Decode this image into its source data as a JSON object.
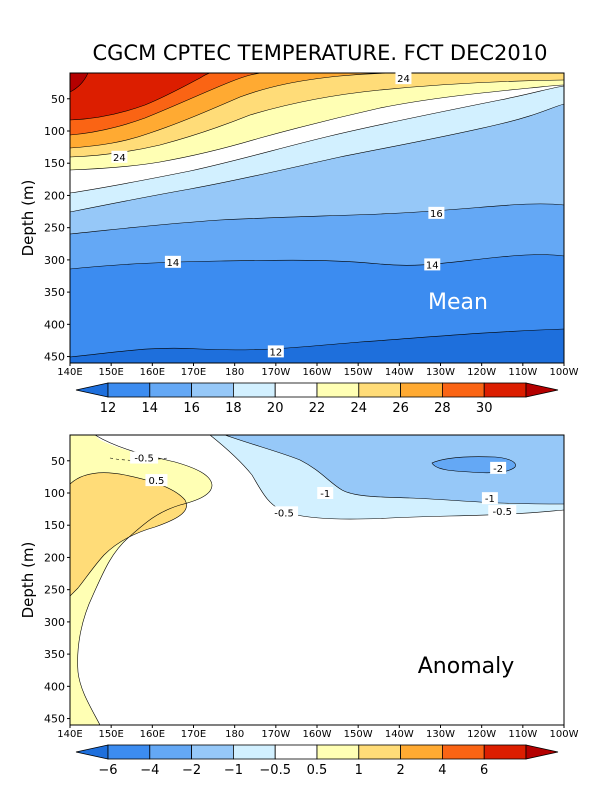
{
  "title": "CGCM CPTEC TEMPERATURE. FCT DEC2010",
  "chart_data": [
    {
      "type": "contour",
      "panel_label": "Mean",
      "title": "CGCM CPTEC TEMPERATURE. FCT DEC2010",
      "xlabel": "",
      "ylabel": "Depth (m)",
      "x_ticks": [
        "140E",
        "150E",
        "160E",
        "170E",
        "180",
        "170W",
        "160W",
        "150W",
        "140W",
        "130W",
        "120W",
        "110W",
        "100W"
      ],
      "y_ticks": [
        50,
        100,
        150,
        200,
        250,
        300,
        350,
        400,
        450
      ],
      "ylim": [
        460,
        10
      ],
      "contour_labels": [
        {
          "text": "24",
          "lon": 221,
          "depth": 18
        },
        {
          "text": "24",
          "lon": 152,
          "depth": 140
        },
        {
          "text": "16",
          "lon": 229,
          "depth": 227
        },
        {
          "text": "14",
          "lon": 165,
          "depth": 303
        },
        {
          "text": "14",
          "lon": 228,
          "depth": 307
        },
        {
          "text": "12",
          "lon": 190,
          "depth": 442
        }
      ],
      "colorbar": {
        "levels": [
          "12",
          "14",
          "16",
          "18",
          "20",
          "22",
          "24",
          "26",
          "28",
          "30"
        ],
        "colors": [
          "#1e6fdc",
          "#3c8cf0",
          "#64a8f5",
          "#96c8f8",
          "#d2f0ff",
          "#ffffff",
          "#ffffb4",
          "#ffdc78",
          "#ffaa32",
          "#fa6414",
          "#dc1e00",
          "#b40000"
        ]
      }
    },
    {
      "type": "contour",
      "panel_label": "Anomaly",
      "xlabel": "",
      "ylabel": "Depth (m)",
      "x_ticks": [
        "140E",
        "150E",
        "160E",
        "170E",
        "180",
        "170W",
        "160W",
        "150W",
        "140W",
        "130W",
        "120W",
        "110W",
        "100W"
      ],
      "y_ticks": [
        50,
        100,
        150,
        200,
        250,
        300,
        350,
        400,
        450
      ],
      "ylim": [
        460,
        10
      ],
      "contour_labels": [
        {
          "text": "-0.5",
          "lon": 158,
          "depth": 45
        },
        {
          "text": "0.5",
          "lon": 161,
          "depth": 80
        },
        {
          "text": "-1",
          "lon": 202,
          "depth": 100
        },
        {
          "text": "-0.5",
          "lon": 192,
          "depth": 130
        },
        {
          "text": "-2",
          "lon": 244,
          "depth": 61
        },
        {
          "text": "-1",
          "lon": 242,
          "depth": 108
        },
        {
          "text": "-0.5",
          "lon": 245,
          "depth": 128
        }
      ],
      "colorbar": {
        "levels": [
          "-6",
          "-4",
          "-2",
          "-1",
          "-0.5",
          "0.5",
          "1",
          "2",
          "4",
          "6"
        ],
        "colors": [
          "#1e6fdc",
          "#3c8cf0",
          "#64a8f5",
          "#96c8f8",
          "#d2f0ff",
          "#ffffff",
          "#ffffb4",
          "#ffdc78",
          "#ffaa32",
          "#fa6414",
          "#dc1e00",
          "#b40000"
        ]
      }
    }
  ]
}
